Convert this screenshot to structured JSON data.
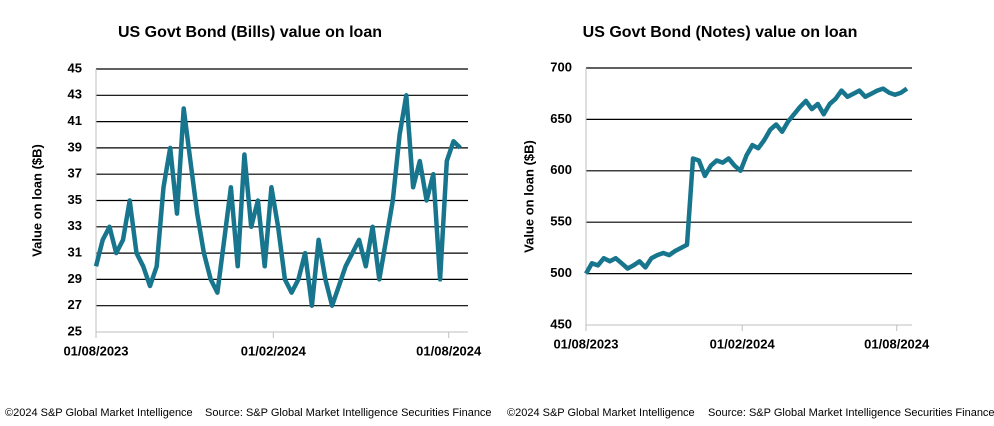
{
  "chart_data": [
    {
      "type": "line",
      "title": "US Govt Bond (Bills) value on loan",
      "y_label": "Value on loan ($B)",
      "x": [
        "01/08/2023",
        "08/08/2023",
        "15/08/2023",
        "22/08/2023",
        "29/08/2023",
        "05/09/2023",
        "12/09/2023",
        "19/09/2023",
        "26/09/2023",
        "03/10/2023",
        "10/10/2023",
        "17/10/2023",
        "24/10/2023",
        "31/10/2023",
        "07/11/2023",
        "14/11/2023",
        "21/11/2023",
        "28/11/2023",
        "05/12/2023",
        "12/12/2023",
        "19/12/2023",
        "26/12/2023",
        "02/01/2024",
        "09/01/2024",
        "16/01/2024",
        "23/01/2024",
        "30/01/2024",
        "06/02/2024",
        "13/02/2024",
        "20/02/2024",
        "27/02/2024",
        "05/03/2024",
        "12/03/2024",
        "19/03/2024",
        "26/03/2024",
        "02/04/2024",
        "09/04/2024",
        "16/04/2024",
        "23/04/2024",
        "30/04/2024",
        "07/05/2024",
        "14/05/2024",
        "21/05/2024",
        "28/05/2024",
        "04/06/2024",
        "11/06/2024",
        "18/06/2024",
        "25/06/2024",
        "02/07/2024",
        "09/07/2024",
        "16/07/2024",
        "23/07/2024",
        "30/07/2024",
        "06/08/2024",
        "13/08/2024"
      ],
      "values": [
        30,
        32,
        33,
        31,
        32,
        35,
        31,
        30,
        28.5,
        30,
        36,
        39,
        34,
        42,
        38,
        34,
        31,
        29,
        28,
        32,
        36,
        30,
        38.5,
        33,
        35,
        30,
        36,
        33,
        29,
        28,
        29,
        31,
        27,
        32,
        29,
        27,
        28.5,
        30,
        31,
        32,
        30,
        33,
        29,
        32,
        35,
        40,
        43,
        36,
        38,
        35,
        37,
        29,
        38,
        39.5,
        39
      ],
      "color": "#17768d",
      "xlim": [
        "01/08/2023",
        "21/08/2024"
      ],
      "xticks": [
        "01/08/2023",
        "01/02/2024",
        "01/08/2024"
      ],
      "ylim": [
        25,
        45
      ],
      "yticks": [
        25,
        27,
        29,
        31,
        33,
        35,
        37,
        39,
        41,
        43,
        45
      ],
      "grid": true,
      "copyright": "©2024 S&P Global Market Intelligence",
      "source": "Source: S&P Global Market Intelligence Securities Finance"
    },
    {
      "type": "line",
      "title": "US Govt Bond (Notes) value on loan",
      "y_label": "Value on loan ($B)",
      "x": [
        "01/08/2023",
        "08/08/2023",
        "15/08/2023",
        "22/08/2023",
        "29/08/2023",
        "05/09/2023",
        "12/09/2023",
        "19/09/2023",
        "26/09/2023",
        "03/10/2023",
        "10/10/2023",
        "17/10/2023",
        "24/10/2023",
        "31/10/2023",
        "07/11/2023",
        "14/11/2023",
        "21/11/2023",
        "28/11/2023",
        "05/12/2023",
        "12/12/2023",
        "19/12/2023",
        "26/12/2023",
        "02/01/2024",
        "09/01/2024",
        "16/01/2024",
        "23/01/2024",
        "30/01/2024",
        "06/02/2024",
        "13/02/2024",
        "20/02/2024",
        "27/02/2024",
        "05/03/2024",
        "12/03/2024",
        "19/03/2024",
        "26/03/2024",
        "02/04/2024",
        "09/04/2024",
        "16/04/2024",
        "23/04/2024",
        "30/04/2024",
        "07/05/2024",
        "14/05/2024",
        "21/05/2024",
        "28/05/2024",
        "04/06/2024",
        "11/06/2024",
        "18/06/2024",
        "25/06/2024",
        "02/07/2024",
        "09/07/2024",
        "16/07/2024",
        "23/07/2024",
        "30/07/2024",
        "06/08/2024",
        "13/08/2024"
      ],
      "values": [
        500,
        510,
        508,
        515,
        512,
        515,
        510,
        505,
        508,
        512,
        506,
        515,
        518,
        520,
        518,
        522,
        525,
        528,
        612,
        610,
        595,
        605,
        610,
        608,
        612,
        605,
        600,
        615,
        625,
        622,
        630,
        640,
        645,
        638,
        648,
        655,
        662,
        668,
        660,
        665,
        655,
        665,
        670,
        678,
        672,
        675,
        678,
        672,
        675,
        678,
        680,
        676,
        674,
        676,
        680
      ],
      "color": "#17768d",
      "xlim": [
        "01/08/2023",
        "19/08/2024"
      ],
      "xticks": [
        "01/08/2023",
        "01/02/2024",
        "01/08/2024"
      ],
      "ylim": [
        450,
        700
      ],
      "yticks": [
        450,
        500,
        550,
        600,
        650,
        700
      ],
      "grid": true,
      "copyright": "©2024 S&P Global Market Intelligence",
      "source": "Source: S&P Global Market Intelligence Securities Finance"
    }
  ]
}
